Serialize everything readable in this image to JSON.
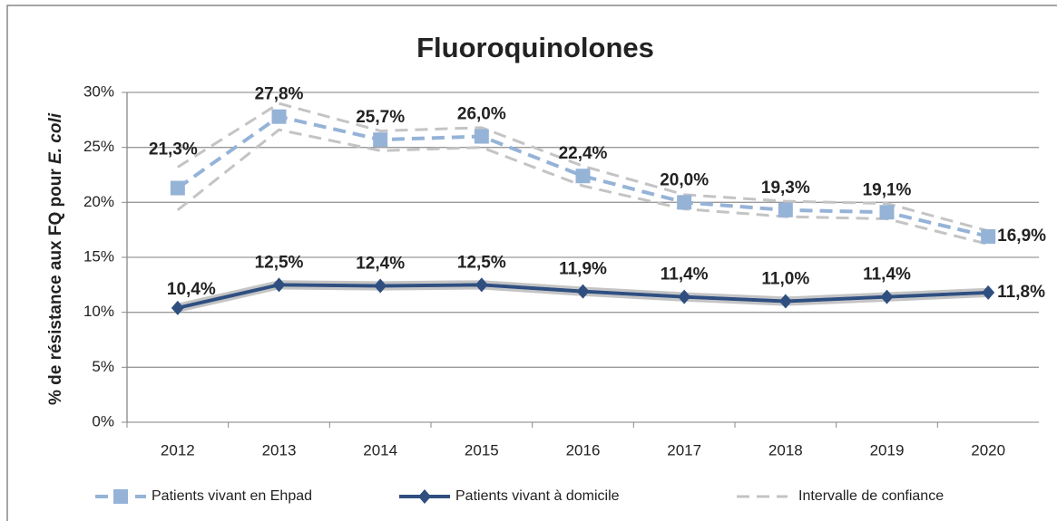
{
  "chart_data": {
    "type": "line",
    "title": "Fluoroquinolones",
    "y_label": "% de résistance aux FQ pour ",
    "y_label_species": "E. coli",
    "categories": [
      "2012",
      "2013",
      "2014",
      "2015",
      "2016",
      "2017",
      "2018",
      "2019",
      "2020"
    ],
    "ylim": [
      0,
      30
    ],
    "yticks": [
      {
        "value": 0,
        "label": "0%"
      },
      {
        "value": 5,
        "label": "5%"
      },
      {
        "value": 10,
        "label": "10%"
      },
      {
        "value": 15,
        "label": "15%"
      },
      {
        "value": 20,
        "label": "20%"
      },
      {
        "value": 25,
        "label": "25%"
      },
      {
        "value": 30,
        "label": "30%"
      }
    ],
    "grid": true,
    "legend": "bottom",
    "series": [
      {
        "name": "Patients vivant en Ehpad",
        "color": "#95b3d7",
        "marker": "square",
        "dashed": true,
        "values": [
          21.3,
          27.8,
          25.7,
          26.0,
          22.4,
          20.0,
          19.3,
          19.1,
          16.9
        ],
        "value_labels": [
          "21,3%",
          "27,8%",
          "25,7%",
          "26,0%",
          "22,4%",
          "20,0%",
          "19,3%",
          "19,1%",
          "16,9%"
        ],
        "ci_low": [
          19.3,
          26.6,
          24.7,
          25.0,
          21.5,
          19.4,
          18.7,
          18.5,
          16.2
        ],
        "ci_high": [
          23.2,
          29.0,
          26.5,
          26.8,
          23.3,
          20.7,
          20.1,
          19.9,
          17.4
        ]
      },
      {
        "name": "Patients vivant à domicile",
        "color": "#2f4f80",
        "marker": "diamond",
        "dashed": false,
        "values": [
          10.4,
          12.5,
          12.4,
          12.5,
          11.9,
          11.4,
          11.0,
          11.4,
          11.8
        ],
        "value_labels": [
          "10,4%",
          "12,5%",
          "12,4%",
          "12,5%",
          "11,9%",
          "11,4%",
          "11,0%",
          "11,4%",
          "11,8%"
        ],
        "ci_low": [
          10.1,
          12.2,
          12.1,
          12.2,
          11.6,
          11.1,
          10.7,
          11.1,
          11.5
        ],
        "ci_high": [
          10.7,
          12.8,
          12.7,
          12.8,
          12.2,
          11.7,
          11.3,
          11.7,
          12.1
        ]
      }
    ],
    "ci": {
      "name": "Intervalle de confiance",
      "color": "#c4c4c4"
    }
  }
}
